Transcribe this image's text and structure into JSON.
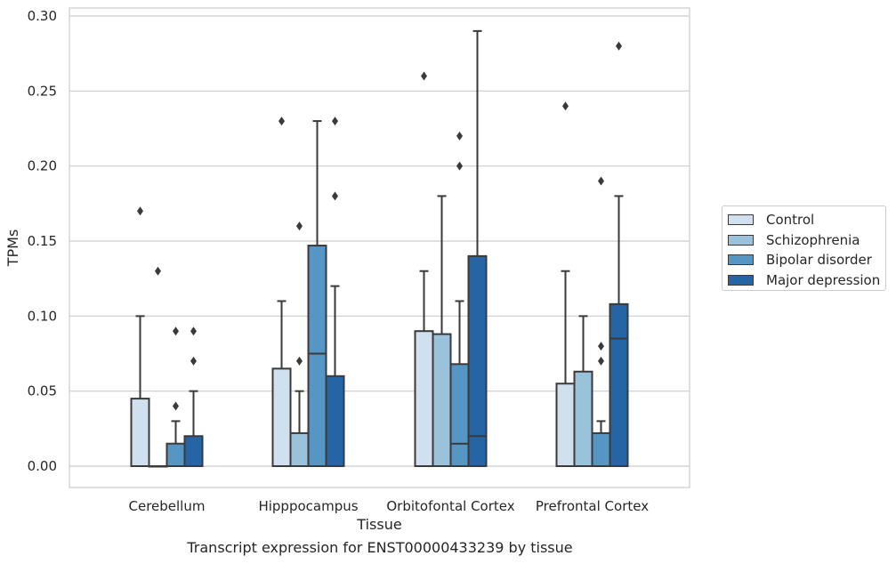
{
  "chart_data": {
    "type": "box",
    "xlabel": "Tissue",
    "ylabel": "TPMs",
    "ylim": [
      -0.014,
      0.305
    ],
    "yticks": [
      0.0,
      0.05,
      0.1,
      0.15,
      0.2,
      0.25,
      0.3
    ],
    "ytick_labels": [
      "0.00",
      "0.05",
      "0.10",
      "0.15",
      "0.20",
      "0.25",
      "0.30"
    ],
    "grid": "horizontal",
    "legend_position": "right",
    "categories": [
      "Cerebellum",
      "Hipppocampus",
      "Orbitofontal Cortex",
      "Prefrontal Cortex"
    ],
    "series": [
      {
        "name": "Control",
        "color": "#d0e0ef",
        "boxes": [
          {
            "q1": 0.0,
            "median": 0.0,
            "q3": 0.045,
            "whisker_low": 0.0,
            "whisker_high": 0.1,
            "outliers": [
              0.17
            ]
          },
          {
            "q1": 0.0,
            "median": 0.0,
            "q3": 0.065,
            "whisker_low": 0.0,
            "whisker_high": 0.11,
            "outliers": [
              0.23
            ]
          },
          {
            "q1": 0.0,
            "median": 0.0,
            "q3": 0.09,
            "whisker_low": 0.0,
            "whisker_high": 0.13,
            "outliers": [
              0.26
            ]
          },
          {
            "q1": 0.0,
            "median": 0.0,
            "q3": 0.055,
            "whisker_low": 0.0,
            "whisker_high": 0.13,
            "outliers": [
              0.24
            ]
          }
        ]
      },
      {
        "name": "Schizophrenia",
        "color": "#9bc2db",
        "boxes": [
          {
            "q1": 0.0,
            "median": 0.0,
            "q3": 0.0,
            "whisker_low": 0.0,
            "whisker_high": 0.0,
            "outliers": [
              0.13
            ]
          },
          {
            "q1": 0.0,
            "median": 0.0,
            "q3": 0.022,
            "whisker_low": 0.0,
            "whisker_high": 0.05,
            "outliers": [
              0.07,
              0.16
            ]
          },
          {
            "q1": 0.0,
            "median": 0.0,
            "q3": 0.088,
            "whisker_low": 0.0,
            "whisker_high": 0.18,
            "outliers": []
          },
          {
            "q1": 0.0,
            "median": 0.0,
            "q3": 0.063,
            "whisker_low": 0.0,
            "whisker_high": 0.1,
            "outliers": []
          }
        ]
      },
      {
        "name": "Bipolar disorder",
        "color": "#5596c4",
        "boxes": [
          {
            "q1": 0.0,
            "median": 0.0,
            "q3": 0.015,
            "whisker_low": 0.0,
            "whisker_high": 0.03,
            "outliers": [
              0.04,
              0.09
            ]
          },
          {
            "q1": 0.0,
            "median": 0.075,
            "q3": 0.147,
            "whisker_low": 0.0,
            "whisker_high": 0.23,
            "outliers": []
          },
          {
            "q1": 0.0,
            "median": 0.015,
            "q3": 0.068,
            "whisker_low": 0.0,
            "whisker_high": 0.11,
            "outliers": [
              0.2,
              0.22
            ]
          },
          {
            "q1": 0.0,
            "median": 0.0,
            "q3": 0.022,
            "whisker_low": 0.0,
            "whisker_high": 0.03,
            "outliers": [
              0.07,
              0.08,
              0.19
            ]
          }
        ]
      },
      {
        "name": "Major depression",
        "color": "#2565a5",
        "boxes": [
          {
            "q1": 0.0,
            "median": 0.0,
            "q3": 0.02,
            "whisker_low": 0.0,
            "whisker_high": 0.05,
            "outliers": [
              0.07,
              0.09
            ]
          },
          {
            "q1": 0.0,
            "median": 0.0,
            "q3": 0.06,
            "whisker_low": 0.0,
            "whisker_high": 0.12,
            "outliers": [
              0.18,
              0.23
            ]
          },
          {
            "q1": 0.0,
            "median": 0.02,
            "q3": 0.14,
            "whisker_low": 0.0,
            "whisker_high": 0.29,
            "outliers": []
          },
          {
            "q1": 0.0,
            "median": 0.085,
            "q3": 0.108,
            "whisker_low": 0.0,
            "whisker_high": 0.18,
            "outliers": [
              0.28
            ]
          }
        ]
      }
    ],
    "caption": "Transcript expression for ENST00000433239 by tissue"
  }
}
